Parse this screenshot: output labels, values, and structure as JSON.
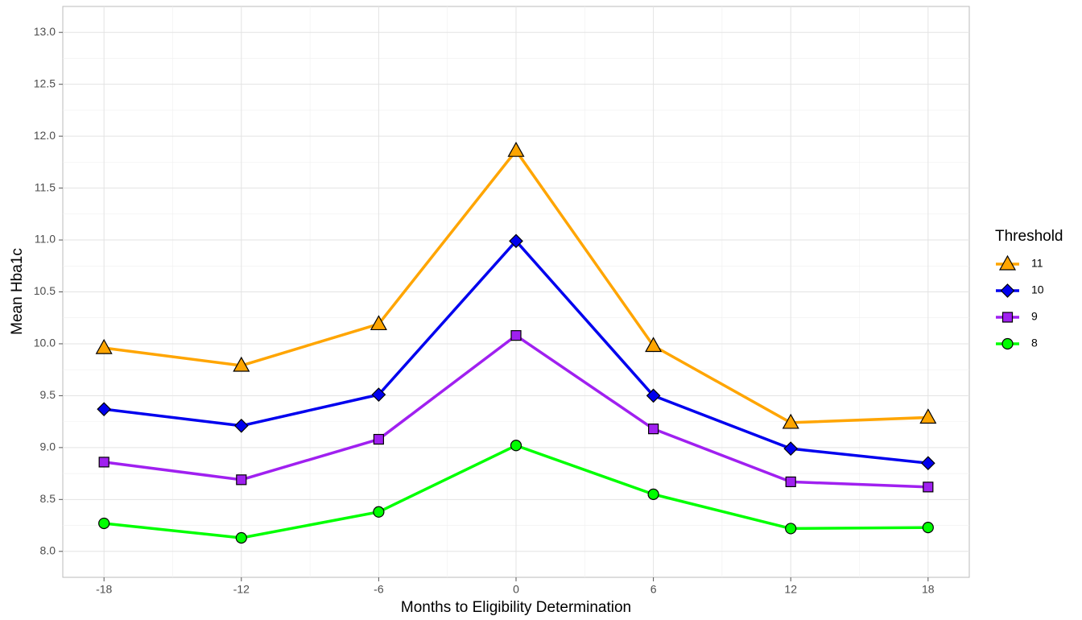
{
  "chart_data": {
    "type": "line",
    "x_label": "Months to Eligibility Determination",
    "y_label": "Mean Hba1c",
    "legend_title": "Threshold",
    "legend_position": "right",
    "grid": true,
    "x": [
      -18,
      -12,
      -6,
      0,
      6,
      12,
      18
    ],
    "xlim": [
      -19.8,
      19.8
    ],
    "xticks": [
      -18,
      -12,
      -6,
      0,
      6,
      12,
      18
    ],
    "xminor": [
      -15,
      -9,
      -3,
      3,
      9,
      15
    ],
    "ylim": [
      7.75,
      13.25
    ],
    "yticks": [
      {
        "value": 8,
        "label": "8.0"
      },
      8.5,
      {
        "value": 9,
        "label": "9.0"
      },
      9.5,
      {
        "value": 10,
        "label": "10.0"
      },
      10.5,
      {
        "value": 11,
        "label": "11.0"
      },
      11.5,
      {
        "value": 12,
        "label": "12.0"
      },
      12.5,
      {
        "value": 13,
        "label": "13.0"
      }
    ],
    "yminor": [
      8.25,
      8.75,
      9.25,
      9.75,
      10.25,
      10.75,
      11.25,
      11.75,
      12.25,
      12.75
    ],
    "series": [
      {
        "name": "11",
        "color": "#ffa500",
        "shape": "triangle",
        "values": [
          9.96,
          9.79,
          10.19,
          11.86,
          9.98,
          9.24,
          9.29
        ]
      },
      {
        "name": "10",
        "color": "#0000ee",
        "shape": "diamond",
        "values": [
          9.37,
          9.21,
          9.51,
          10.99,
          9.5,
          8.99,
          8.85
        ]
      },
      {
        "name": "9",
        "color": "#a020f0",
        "shape": "square",
        "values": [
          8.86,
          8.69,
          9.08,
          10.08,
          9.18,
          8.67,
          8.62
        ]
      },
      {
        "name": "8",
        "color": "#00ff00",
        "shape": "circle",
        "values": [
          8.27,
          8.13,
          8.38,
          9.02,
          8.55,
          8.22,
          8.23
        ]
      }
    ]
  }
}
